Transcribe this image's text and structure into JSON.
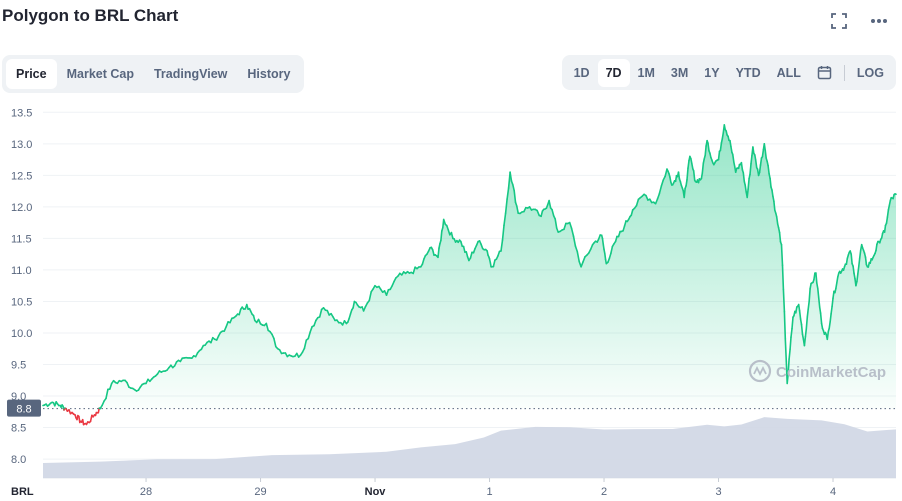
{
  "title": "Polygon to BRL Chart",
  "icons": {
    "fullscreen": "fullscreen-icon",
    "more": "more-icon",
    "calendar": "calendar-icon"
  },
  "tabs": [
    {
      "label": "Price",
      "active": true
    },
    {
      "label": "Market Cap",
      "active": false
    },
    {
      "label": "TradingView",
      "active": false
    },
    {
      "label": "History",
      "active": false
    }
  ],
  "ranges": [
    {
      "label": "1D",
      "active": false
    },
    {
      "label": "7D",
      "active": true
    },
    {
      "label": "1M",
      "active": false
    },
    {
      "label": "3M",
      "active": false
    },
    {
      "label": "1Y",
      "active": false
    },
    {
      "label": "YTD",
      "active": false
    },
    {
      "label": "ALL",
      "active": false
    }
  ],
  "log_label": "LOG",
  "watermark": "CoinMarketCap",
  "colors": {
    "up": "#16c784",
    "down": "#ea3943",
    "volume": "#cfd6e4",
    "reference": "#58667e"
  },
  "chart_data": {
    "type": "area",
    "currency_label": "BRL",
    "ylim": [
      7.7,
      13.6
    ],
    "y_ticks": [
      "13.5",
      "13.0",
      "12.5",
      "12.0",
      "11.5",
      "11.0",
      "10.5",
      "10.0",
      "9.5",
      "9.0",
      "8.5",
      "8.0"
    ],
    "x_ticks": [
      {
        "label": "28",
        "t": 0.9,
        "bold": false
      },
      {
        "label": "29",
        "t": 1.9,
        "bold": false
      },
      {
        "label": "Nov",
        "t": 2.9,
        "bold": true
      },
      {
        "label": "1",
        "t": 3.9,
        "bold": false
      },
      {
        "label": "2",
        "t": 4.9,
        "bold": false
      },
      {
        "label": "3",
        "t": 5.9,
        "bold": false
      },
      {
        "label": "4",
        "t": 6.9,
        "bold": false
      }
    ],
    "reference_price": 8.8,
    "reference_label": "8.8",
    "price_series": {
      "name": "Price",
      "t": [
        0,
        0.08,
        0.15,
        0.2,
        0.28,
        0.33,
        0.38,
        0.45,
        0.5,
        0.6,
        0.7,
        0.8,
        0.9,
        1.0,
        1.1,
        1.2,
        1.3,
        1.4,
        1.5,
        1.6,
        1.7,
        1.78,
        1.85,
        1.95,
        2.05,
        2.15,
        2.25,
        2.35,
        2.45,
        2.55,
        2.65,
        2.72,
        2.8,
        2.9,
        3.0,
        3.1,
        3.2,
        3.3,
        3.38,
        3.45,
        3.5,
        3.58,
        3.65,
        3.72,
        3.8,
        3.88,
        3.92,
        4.0,
        4.08,
        4.15,
        4.25,
        4.35,
        4.42,
        4.5,
        4.6,
        4.7,
        4.8,
        4.88,
        4.92,
        5.0,
        5.08,
        5.15,
        5.25,
        5.35,
        5.45,
        5.5,
        5.55,
        5.6,
        5.65,
        5.7,
        5.75,
        5.8,
        5.85,
        5.9,
        5.95,
        6.0,
        6.05,
        6.1,
        6.15,
        6.2,
        6.25,
        6.3,
        6.35,
        6.4,
        6.45,
        6.5,
        6.55,
        6.6,
        6.65,
        6.7,
        6.75,
        6.8,
        6.85,
        6.9,
        6.95,
        7.0,
        7.05,
        7.1,
        7.15,
        7.2,
        7.25,
        7.3,
        7.35,
        7.4,
        7.45
      ],
      "values": [
        8.85,
        8.9,
        8.85,
        8.8,
        8.7,
        8.6,
        8.55,
        8.7,
        8.8,
        9.2,
        9.25,
        9.1,
        9.2,
        9.35,
        9.45,
        9.55,
        9.6,
        9.8,
        9.9,
        10.1,
        10.3,
        10.45,
        10.2,
        10.15,
        9.75,
        9.65,
        9.65,
        10.1,
        10.4,
        10.2,
        10.15,
        10.5,
        10.35,
        10.75,
        10.6,
        10.9,
        10.95,
        11.05,
        11.35,
        11.2,
        11.8,
        11.5,
        11.45,
        11.15,
        11.45,
        11.3,
        11.05,
        11.3,
        12.55,
        11.9,
        12.0,
        11.85,
        12.1,
        11.6,
        11.75,
        11.05,
        11.4,
        11.55,
        11.1,
        11.45,
        11.7,
        11.95,
        12.2,
        12.05,
        12.6,
        12.35,
        12.55,
        12.15,
        12.8,
        12.4,
        12.45,
        13.05,
        12.7,
        12.75,
        13.3,
        13.05,
        12.55,
        12.7,
        12.15,
        12.95,
        12.5,
        13.0,
        12.45,
        11.9,
        11.4,
        9.2,
        10.25,
        10.45,
        9.8,
        10.7,
        10.95,
        10.15,
        9.9,
        10.55,
        10.95,
        11.05,
        11.3,
        10.75,
        11.4,
        11.05,
        11.2,
        11.45,
        11.6,
        12.1,
        12.2
      ],
      "x_range": [
        0,
        7.45
      ]
    },
    "volume_series": {
      "name": "Volume",
      "t": [
        0,
        0.5,
        1.0,
        1.5,
        2.0,
        2.5,
        3.0,
        3.3,
        3.6,
        3.85,
        4.0,
        4.3,
        4.6,
        4.9,
        5.2,
        5.5,
        5.8,
        5.95,
        6.1,
        6.3,
        6.5,
        6.8,
        7.0,
        7.2,
        7.45
      ],
      "values": [
        0.25,
        0.28,
        0.3,
        0.33,
        0.37,
        0.4,
        0.44,
        0.5,
        0.58,
        0.66,
        0.8,
        0.85,
        0.84,
        0.82,
        0.8,
        0.83,
        0.88,
        0.86,
        0.9,
        1.0,
        1.0,
        0.95,
        0.9,
        0.78,
        0.8
      ]
    }
  }
}
